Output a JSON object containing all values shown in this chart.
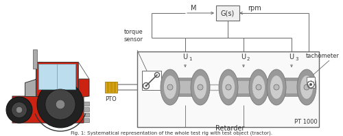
{
  "bg_color": "#ffffff",
  "line_color": "#666666",
  "tractor_red": "#cc2211",
  "tractor_wheel": "#222222",
  "tractor_cab": "#bbddee",
  "tractor_gray": "#aaaaaa",
  "pto_yellow": "#ddaa33",
  "retarder_light": "#cccccc",
  "retarder_dark": "#999999",
  "retarder_mid": "#bbbbbb",
  "box_fill": "#f9f9f9",
  "gs_fill": "#f0f0f0",
  "title": "Fig. 1: Systematical representation of the whole test rig with test object (tractor).",
  "M_label": "M",
  "Gs_label": "G(s)",
  "rpm_label": "rpm",
  "torque_label": "torque\nsensor",
  "PTO_label": "PTO",
  "U1_label": "U",
  "U2_label": "U",
  "U3_label": "U",
  "Retarder_label": "Retarder",
  "PT1000_label": "PT 1000",
  "tachometer_label": "tachometer"
}
